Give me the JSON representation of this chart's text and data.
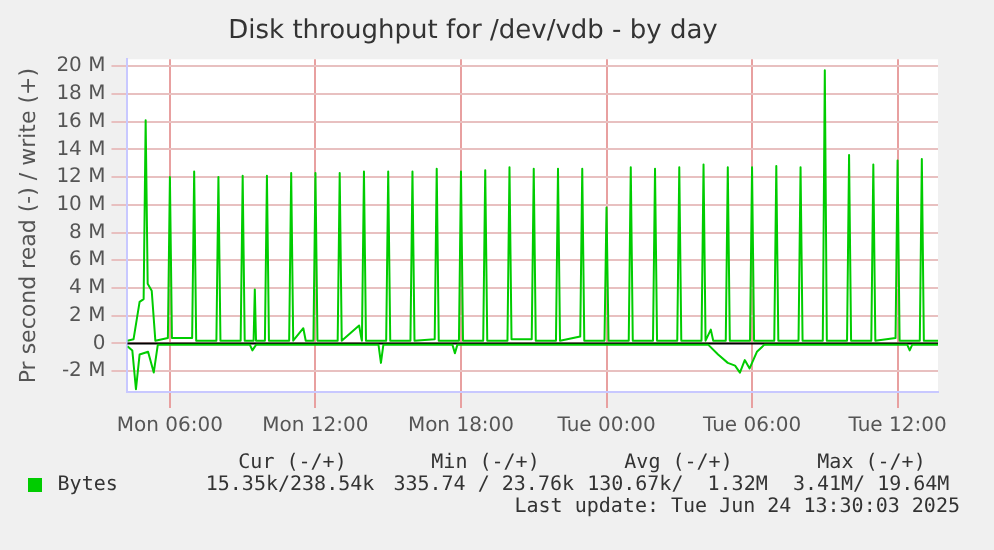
{
  "chart_data": {
    "type": "line",
    "title": "Disk throughput for /dev/vdb - by day",
    "ylabel": "Pr second read (-) / write (+)",
    "xlim": [
      "2025-06-23T04:15",
      "2025-06-24T13:40"
    ],
    "xticks": [
      {
        "value": "2025-06-23T06:00",
        "label": "Mon 06:00"
      },
      {
        "value": "2025-06-23T12:00",
        "label": "Mon 12:00"
      },
      {
        "value": "2025-06-23T18:00",
        "label": "Mon 18:00"
      },
      {
        "value": "2025-06-24T00:00",
        "label": "Tue 00:00"
      },
      {
        "value": "2025-06-24T06:00",
        "label": "Tue 06:00"
      },
      {
        "value": "2025-06-24T12:00",
        "label": "Tue 12:00"
      }
    ],
    "ylim": [
      -3.5,
      20.5
    ],
    "yticks": [
      {
        "value": -2,
        "label": "-2 M"
      },
      0,
      {
        "value": 2,
        "label": "2 M"
      },
      {
        "value": 4,
        "label": "4 M"
      },
      {
        "value": 6,
        "label": "6 M"
      },
      {
        "value": 8,
        "label": "8 M"
      },
      {
        "value": 10,
        "label": "10 M"
      },
      {
        "value": 12,
        "label": "12 M"
      },
      {
        "value": 14,
        "label": "14 M"
      },
      {
        "value": 16,
        "label": "16 M"
      },
      {
        "value": 18,
        "label": "18 M"
      },
      {
        "value": 20,
        "label": "20 M"
      }
    ],
    "grid": true,
    "legend": "bottom left",
    "marker": "none",
    "line_style": "solid",
    "ref_lines": [
      {
        "axis": "y",
        "value": 0,
        "color": "#000000"
      }
    ],
    "series": [
      {
        "name": "Bytes",
        "color": "#00cc00",
        "x": [
          "2025-06-23T04:15",
          "2025-06-23T04:30",
          "2025-06-23T04:45",
          "2025-06-23T04:55",
          "2025-06-23T05:00",
          "2025-06-23T05:05",
          "2025-06-23T05:15",
          "2025-06-23T05:24",
          "2025-06-23T05:55",
          "2025-06-23T06:00",
          "2025-06-23T06:05",
          "2025-06-23T06:55",
          "2025-06-23T07:00",
          "2025-06-23T07:05",
          "2025-06-23T07:55",
          "2025-06-23T08:00",
          "2025-06-23T08:05",
          "2025-06-23T08:55",
          "2025-06-23T09:00",
          "2025-06-23T09:05",
          "2025-06-23T09:27",
          "2025-06-23T09:30",
          "2025-06-23T09:33",
          "2025-06-23T09:55",
          "2025-06-23T10:00",
          "2025-06-23T10:05",
          "2025-06-23T10:55",
          "2025-06-23T11:00",
          "2025-06-23T11:05",
          "2025-06-23T11:30",
          "2025-06-23T11:36",
          "2025-06-23T11:55",
          "2025-06-23T12:00",
          "2025-06-23T12:05",
          "2025-06-23T12:55",
          "2025-06-23T13:00",
          "2025-06-23T13:05",
          "2025-06-23T13:48",
          "2025-06-23T13:54",
          "2025-06-23T13:55",
          "2025-06-23T14:00",
          "2025-06-23T14:05",
          "2025-06-23T14:55",
          "2025-06-23T15:00",
          "2025-06-23T15:05",
          "2025-06-23T15:55",
          "2025-06-23T16:00",
          "2025-06-23T16:05",
          "2025-06-23T16:55",
          "2025-06-23T17:00",
          "2025-06-23T17:05",
          "2025-06-23T17:55",
          "2025-06-23T18:00",
          "2025-06-23T18:05",
          "2025-06-23T18:55",
          "2025-06-23T19:00",
          "2025-06-23T19:05",
          "2025-06-23T19:55",
          "2025-06-23T20:00",
          "2025-06-23T20:05",
          "2025-06-23T20:55",
          "2025-06-23T21:00",
          "2025-06-23T21:05",
          "2025-06-23T21:55",
          "2025-06-23T22:00",
          "2025-06-23T22:05",
          "2025-06-23T22:55",
          "2025-06-23T23:00",
          "2025-06-23T23:05",
          "2025-06-23T23:55",
          "2025-06-24T00:00",
          "2025-06-24T00:05",
          "2025-06-24T00:55",
          "2025-06-24T01:00",
          "2025-06-24T01:05",
          "2025-06-24T01:55",
          "2025-06-24T02:00",
          "2025-06-24T02:05",
          "2025-06-24T02:55",
          "2025-06-24T03:00",
          "2025-06-24T03:05",
          "2025-06-24T03:55",
          "2025-06-24T04:00",
          "2025-06-24T04:05",
          "2025-06-24T04:18",
          "2025-06-24T04:24",
          "2025-06-24T04:55",
          "2025-06-24T05:00",
          "2025-06-24T05:05",
          "2025-06-24T05:55",
          "2025-06-24T06:00",
          "2025-06-24T06:05",
          "2025-06-24T06:55",
          "2025-06-24T07:00",
          "2025-06-24T07:05",
          "2025-06-24T07:55",
          "2025-06-24T08:00",
          "2025-06-24T08:05",
          "2025-06-24T08:55",
          "2025-06-24T09:00",
          "2025-06-24T09:05",
          "2025-06-24T09:55",
          "2025-06-24T10:00",
          "2025-06-24T10:05",
          "2025-06-24T10:55",
          "2025-06-24T11:00",
          "2025-06-24T11:05",
          "2025-06-24T11:55",
          "2025-06-24T12:00",
          "2025-06-24T12:05",
          "2025-06-24T12:55",
          "2025-06-24T13:00",
          "2025-06-24T13:05",
          "2025-06-24T13:40"
        ],
        "values": [
          0.2,
          0.3,
          3.0,
          3.2,
          16.1,
          4.3,
          3.8,
          0.2,
          0.4,
          12.0,
          0.4,
          0.4,
          12.4,
          0.2,
          0.2,
          12.0,
          0.2,
          0.2,
          12.1,
          0.2,
          0.2,
          3.9,
          0.2,
          0.2,
          12.1,
          0.2,
          0.2,
          12.3,
          0.2,
          1.1,
          0.2,
          0.2,
          12.3,
          0.2,
          0.2,
          12.3,
          0.2,
          1.3,
          0.3,
          0.2,
          12.4,
          0.2,
          0.2,
          12.4,
          0.2,
          0.2,
          12.4,
          0.2,
          0.3,
          12.6,
          0.2,
          0.2,
          12.4,
          0.2,
          0.2,
          12.5,
          0.2,
          0.2,
          12.7,
          0.3,
          0.3,
          12.6,
          0.2,
          0.2,
          12.6,
          0.2,
          0.5,
          12.6,
          0.2,
          0.2,
          9.8,
          0.2,
          0.2,
          12.7,
          0.2,
          0.2,
          12.6,
          0.2,
          0.2,
          12.7,
          0.2,
          0.2,
          12.9,
          0.2,
          1.0,
          0.2,
          0.2,
          12.7,
          0.2,
          0.2,
          12.7,
          0.2,
          0.2,
          12.8,
          0.2,
          0.2,
          12.7,
          0.2,
          0.2,
          19.7,
          0.2,
          0.2,
          13.6,
          0.2,
          0.2,
          12.9,
          0.2,
          0.4,
          13.2,
          0.2,
          0.2,
          13.3,
          0.2,
          0.2
        ]
      },
      {
        "color": "#00cc00",
        "x": [
          "2025-06-23T04:15",
          "2025-06-23T04:27",
          "2025-06-23T04:36",
          "2025-06-23T04:45",
          "2025-06-23T05:06",
          "2025-06-23T05:20",
          "2025-06-23T05:30",
          "2025-06-23T09:18",
          "2025-06-23T09:24",
          "2025-06-23T09:33",
          "2025-06-23T14:36",
          "2025-06-23T14:42",
          "2025-06-23T14:48",
          "2025-06-23T17:39",
          "2025-06-23T17:45",
          "2025-06-23T17:51",
          "2025-06-24T04:12",
          "2025-06-24T04:36",
          "2025-06-24T05:00",
          "2025-06-24T05:18",
          "2025-06-24T05:30",
          "2025-06-24T05:42",
          "2025-06-24T05:54",
          "2025-06-24T06:12",
          "2025-06-24T06:30",
          "2025-06-24T12:24",
          "2025-06-24T12:30",
          "2025-06-24T12:36",
          "2025-06-24T13:40"
        ],
        "values": [
          -0.2,
          -0.5,
          -3.3,
          -0.8,
          -0.6,
          -2.1,
          -0.1,
          -0.1,
          -0.5,
          -0.1,
          -0.1,
          -1.4,
          -0.1,
          -0.1,
          -0.7,
          -0.1,
          -0.1,
          -0.8,
          -1.4,
          -1.6,
          -2.1,
          -1.2,
          -1.8,
          -0.6,
          -0.1,
          -0.1,
          -0.5,
          -0.1,
          -0.1
        ]
      }
    ],
    "annotations": [
      "Cur (-/+)",
      "Min (-/+)",
      "Avg (-/+)",
      "Max (-/+)",
      "15.35k/238.54k",
      "335.74 / 23.76k",
      "130.67k/  1.32M",
      "3.41M/ 19.64M",
      "Last update: Tue Jun 24 13:30:03 2025"
    ]
  }
}
